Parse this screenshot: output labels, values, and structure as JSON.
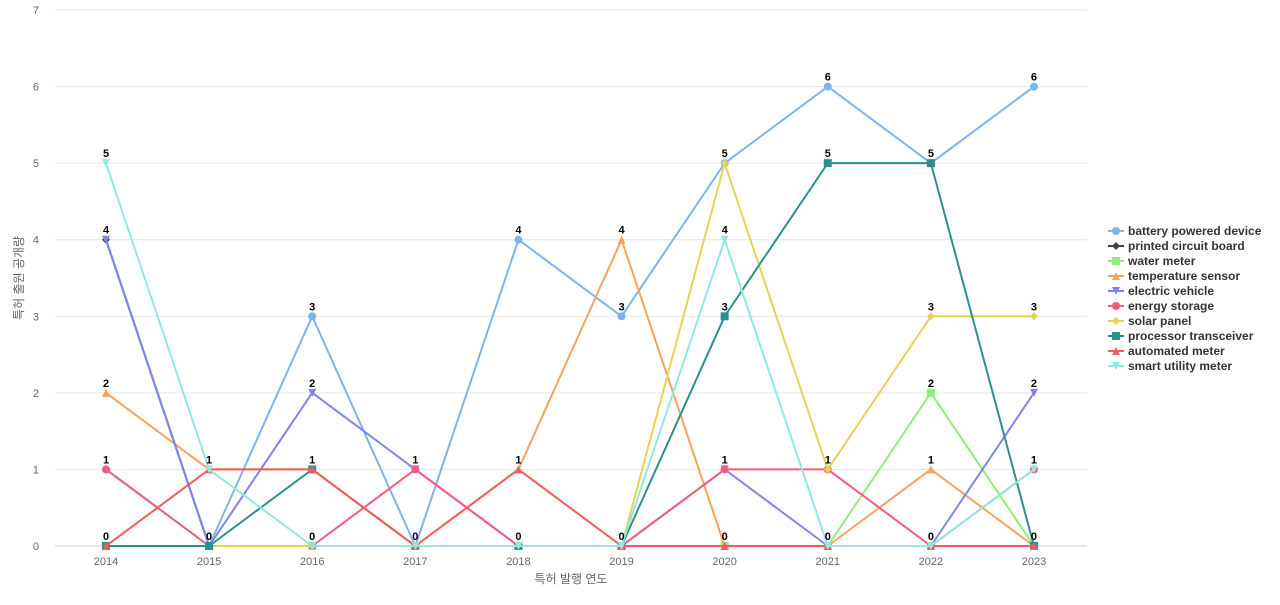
{
  "chart_data": {
    "type": "line",
    "title": "",
    "xlabel": "특허 발행 연도",
    "ylabel": "특허 출원 공개량",
    "x": [
      "2014",
      "2015",
      "2016",
      "2017",
      "2018",
      "2019",
      "2020",
      "2021",
      "2022",
      "2023"
    ],
    "ylim": [
      0,
      7
    ],
    "yticks": [
      0,
      1,
      2,
      3,
      4,
      5,
      6,
      7
    ],
    "grid": true,
    "legend_position": "right",
    "series": [
      {
        "name": "battery powered device",
        "color": "#7cb5ec",
        "marker": "circle",
        "values": [
          1,
          0,
          3,
          0,
          4,
          3,
          5,
          6,
          5,
          6
        ]
      },
      {
        "name": "printed circuit board",
        "color": "#434348",
        "marker": "diamond",
        "values": [
          4,
          0,
          0,
          0,
          0,
          0,
          0,
          0,
          0,
          0
        ]
      },
      {
        "name": "water meter",
        "color": "#90ed7d",
        "marker": "square",
        "values": [
          0,
          0,
          0,
          0,
          0,
          0,
          0,
          0,
          2,
          0
        ]
      },
      {
        "name": "temperature sensor",
        "color": "#f7a35c",
        "marker": "triangle",
        "values": [
          2,
          1,
          1,
          0,
          1,
          4,
          0,
          0,
          1,
          0
        ]
      },
      {
        "name": "electric vehicle",
        "color": "#8085e9",
        "marker": "triangle-down",
        "values": [
          4,
          0,
          2,
          1,
          0,
          0,
          1,
          0,
          0,
          2
        ]
      },
      {
        "name": "energy storage",
        "color": "#f15c80",
        "marker": "circle",
        "values": [
          1,
          0,
          0,
          1,
          0,
          0,
          1,
          1,
          0,
          1
        ]
      },
      {
        "name": "solar panel",
        "color": "#e4d354",
        "marker": "diamond",
        "values": [
          0,
          0,
          0,
          0,
          0,
          0,
          5,
          1,
          3,
          3
        ]
      },
      {
        "name": "processor transceiver",
        "color": "#2b908f",
        "marker": "square",
        "values": [
          0,
          0,
          1,
          0,
          0,
          0,
          3,
          5,
          5,
          0
        ]
      },
      {
        "name": "automated meter",
        "color": "#f45b5b",
        "marker": "triangle",
        "values": [
          0,
          1,
          1,
          0,
          1,
          0,
          0,
          0,
          0,
          0
        ]
      },
      {
        "name": "smart utility meter",
        "color": "#91e8e1",
        "marker": "triangle-down",
        "values": [
          5,
          1,
          0,
          0,
          0,
          0,
          4,
          0,
          0,
          1
        ]
      }
    ],
    "data_labels": [
      {
        "x": "2014",
        "text": "5",
        "value": 5
      },
      {
        "x": "2014",
        "text": "4",
        "value": 4
      },
      {
        "x": "2014",
        "text": "2",
        "value": 2
      },
      {
        "x": "2014",
        "text": "1",
        "value": 1
      },
      {
        "x": "2014",
        "text": "0",
        "value": 0
      },
      {
        "x": "2015",
        "text": "1",
        "value": 1
      },
      {
        "x": "2015",
        "text": "0",
        "value": 0
      },
      {
        "x": "2016",
        "text": "3",
        "value": 3
      },
      {
        "x": "2016",
        "text": "2",
        "value": 2
      },
      {
        "x": "2016",
        "text": "1",
        "value": 1
      },
      {
        "x": "2016",
        "text": "0",
        "value": 0
      },
      {
        "x": "2017",
        "text": "1",
        "value": 1
      },
      {
        "x": "2017",
        "text": "0",
        "value": 0
      },
      {
        "x": "2018",
        "text": "4",
        "value": 4
      },
      {
        "x": "2018",
        "text": "1",
        "value": 1
      },
      {
        "x": "2018",
        "text": "0",
        "value": 0
      },
      {
        "x": "2019",
        "text": "4",
        "value": 4
      },
      {
        "x": "2019",
        "text": "3",
        "value": 3
      },
      {
        "x": "2019",
        "text": "0",
        "value": 0
      },
      {
        "x": "2020",
        "text": "5",
        "value": 5
      },
      {
        "x": "2020",
        "text": "4",
        "value": 4
      },
      {
        "x": "2020",
        "text": "3",
        "value": 3
      },
      {
        "x": "2020",
        "text": "1",
        "value": 1
      },
      {
        "x": "2020",
        "text": "0",
        "value": 0
      },
      {
        "x": "2021",
        "text": "6",
        "value": 6
      },
      {
        "x": "2021",
        "text": "5",
        "value": 5
      },
      {
        "x": "2021",
        "text": "1",
        "value": 1
      },
      {
        "x": "2021",
        "text": "0",
        "value": 0
      },
      {
        "x": "2022",
        "text": "5",
        "value": 5
      },
      {
        "x": "2022",
        "text": "3",
        "value": 3
      },
      {
        "x": "2022",
        "text": "2",
        "value": 2
      },
      {
        "x": "2022",
        "text": "1",
        "value": 1
      },
      {
        "x": "2022",
        "text": "0",
        "value": 0
      },
      {
        "x": "2023",
        "text": "6",
        "value": 6
      },
      {
        "x": "2023",
        "text": "3",
        "value": 3
      },
      {
        "x": "2023",
        "text": "2",
        "value": 2
      },
      {
        "x": "2023",
        "text": "1",
        "value": 1
      },
      {
        "x": "2023",
        "text": "0",
        "value": 0
      }
    ]
  }
}
